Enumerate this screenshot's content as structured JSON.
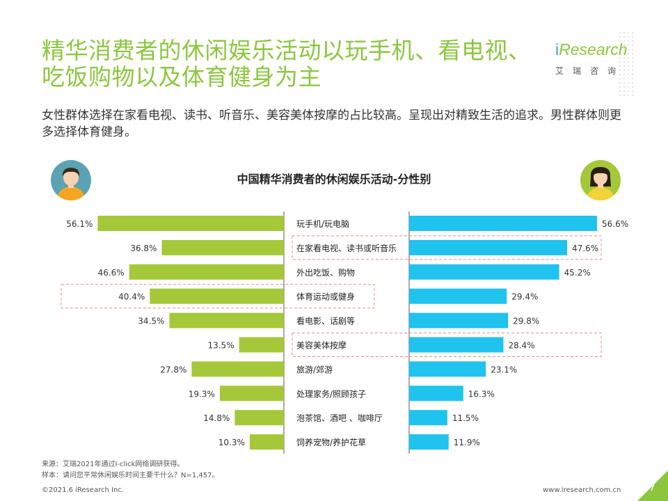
{
  "header": {
    "title": "精华消费者的休闲娱乐活动以玩手机、看电视、吃饭购物以及体育健身为主",
    "subtitle": "女性群体选择在家看电视、读书、听音乐、美容美体按摩的占比较高。呈现出对精致生活的追求。男性群体则更多选择体育健身。"
  },
  "logo": {
    "brand_i": "i",
    "brand_rest": "Research",
    "cn": "艾瑞咨询"
  },
  "colors": {
    "male_bar": "#a5c83a",
    "female_bar": "#1fc3ed",
    "title": "#8cc63f",
    "highlight_box": "#e88a8a"
  },
  "chart_data": {
    "type": "bar",
    "title": "中国精华消费者的休闲娱乐活动-分性别",
    "orientation": "horizontal-butterfly",
    "categories": [
      "玩手机/玩电脑",
      "在家看电视、读书或听音乐",
      "外出吃饭、购物",
      "体育运动或健身",
      "看电影、话剧等",
      "美容美体按摩",
      "旅游/郊游",
      "处理家务/照顾孩子",
      "泡茶馆、酒吧 、咖啡厅",
      "饲养宠物/养护花草"
    ],
    "series": [
      {
        "values": [
          56.1,
          36.8,
          46.6,
          40.4,
          34.5,
          13.5,
          27.8,
          19.3,
          14.8,
          10.3
        ],
        "labels": [
          "56.1%",
          "36.8%",
          "46.6%",
          "40.4%",
          "34.5%",
          "13.5%",
          "27.8%",
          "19.3%",
          "14.8%",
          "10.3%"
        ]
      },
      {
        "values": [
          56.6,
          47.6,
          45.2,
          29.4,
          29.8,
          28.4,
          23.1,
          16.3,
          11.5,
          11.9
        ],
        "labels": [
          "56.6%",
          "47.6%",
          "45.2%",
          "29.4%",
          "29.8%",
          "28.4%",
          "23.1%",
          "16.3%",
          "11.5%",
          "11.9%"
        ]
      }
    ],
    "highlighted_categories": {
      "left": [
        3
      ],
      "right": [
        1,
        5
      ]
    },
    "xlim": [
      0,
      60
    ]
  },
  "footer": {
    "source": "来源：艾瑞2021年通过I-click网络调研获得。",
    "sample": "样本：请问您平常休闲娱乐时间主要干什么？N=1,457。",
    "copyright": "©2021.6 iResearch Inc.",
    "website": "www.iresearch.com.cn",
    "page": "17"
  }
}
